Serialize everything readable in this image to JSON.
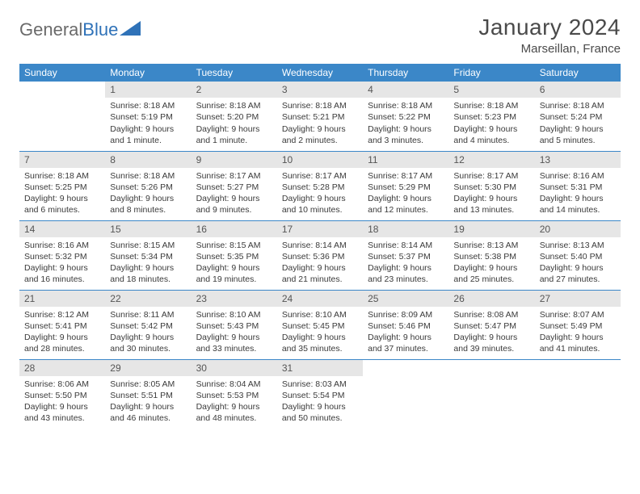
{
  "logo": {
    "text1": "General",
    "text2": "Blue"
  },
  "title": "January 2024",
  "location": "Marseillan, France",
  "colors": {
    "header_bg": "#3b87c8",
    "header_text": "#ffffff",
    "daynum_bg": "#e6e6e6",
    "rule": "#3b87c8",
    "body_text": "#3a3a3a"
  },
  "daynames": [
    "Sunday",
    "Monday",
    "Tuesday",
    "Wednesday",
    "Thursday",
    "Friday",
    "Saturday"
  ],
  "weeks": [
    [
      {
        "n": "",
        "sr": "",
        "ss": "",
        "dl1": "",
        "dl2": "",
        "empty": true
      },
      {
        "n": "1",
        "sr": "Sunrise: 8:18 AM",
        "ss": "Sunset: 5:19 PM",
        "dl1": "Daylight: 9 hours",
        "dl2": "and 1 minute."
      },
      {
        "n": "2",
        "sr": "Sunrise: 8:18 AM",
        "ss": "Sunset: 5:20 PM",
        "dl1": "Daylight: 9 hours",
        "dl2": "and 1 minute."
      },
      {
        "n": "3",
        "sr": "Sunrise: 8:18 AM",
        "ss": "Sunset: 5:21 PM",
        "dl1": "Daylight: 9 hours",
        "dl2": "and 2 minutes."
      },
      {
        "n": "4",
        "sr": "Sunrise: 8:18 AM",
        "ss": "Sunset: 5:22 PM",
        "dl1": "Daylight: 9 hours",
        "dl2": "and 3 minutes."
      },
      {
        "n": "5",
        "sr": "Sunrise: 8:18 AM",
        "ss": "Sunset: 5:23 PM",
        "dl1": "Daylight: 9 hours",
        "dl2": "and 4 minutes."
      },
      {
        "n": "6",
        "sr": "Sunrise: 8:18 AM",
        "ss": "Sunset: 5:24 PM",
        "dl1": "Daylight: 9 hours",
        "dl2": "and 5 minutes."
      }
    ],
    [
      {
        "n": "7",
        "sr": "Sunrise: 8:18 AM",
        "ss": "Sunset: 5:25 PM",
        "dl1": "Daylight: 9 hours",
        "dl2": "and 6 minutes."
      },
      {
        "n": "8",
        "sr": "Sunrise: 8:18 AM",
        "ss": "Sunset: 5:26 PM",
        "dl1": "Daylight: 9 hours",
        "dl2": "and 8 minutes."
      },
      {
        "n": "9",
        "sr": "Sunrise: 8:17 AM",
        "ss": "Sunset: 5:27 PM",
        "dl1": "Daylight: 9 hours",
        "dl2": "and 9 minutes."
      },
      {
        "n": "10",
        "sr": "Sunrise: 8:17 AM",
        "ss": "Sunset: 5:28 PM",
        "dl1": "Daylight: 9 hours",
        "dl2": "and 10 minutes."
      },
      {
        "n": "11",
        "sr": "Sunrise: 8:17 AM",
        "ss": "Sunset: 5:29 PM",
        "dl1": "Daylight: 9 hours",
        "dl2": "and 12 minutes."
      },
      {
        "n": "12",
        "sr": "Sunrise: 8:17 AM",
        "ss": "Sunset: 5:30 PM",
        "dl1": "Daylight: 9 hours",
        "dl2": "and 13 minutes."
      },
      {
        "n": "13",
        "sr": "Sunrise: 8:16 AM",
        "ss": "Sunset: 5:31 PM",
        "dl1": "Daylight: 9 hours",
        "dl2": "and 14 minutes."
      }
    ],
    [
      {
        "n": "14",
        "sr": "Sunrise: 8:16 AM",
        "ss": "Sunset: 5:32 PM",
        "dl1": "Daylight: 9 hours",
        "dl2": "and 16 minutes."
      },
      {
        "n": "15",
        "sr": "Sunrise: 8:15 AM",
        "ss": "Sunset: 5:34 PM",
        "dl1": "Daylight: 9 hours",
        "dl2": "and 18 minutes."
      },
      {
        "n": "16",
        "sr": "Sunrise: 8:15 AM",
        "ss": "Sunset: 5:35 PM",
        "dl1": "Daylight: 9 hours",
        "dl2": "and 19 minutes."
      },
      {
        "n": "17",
        "sr": "Sunrise: 8:14 AM",
        "ss": "Sunset: 5:36 PM",
        "dl1": "Daylight: 9 hours",
        "dl2": "and 21 minutes."
      },
      {
        "n": "18",
        "sr": "Sunrise: 8:14 AM",
        "ss": "Sunset: 5:37 PM",
        "dl1": "Daylight: 9 hours",
        "dl2": "and 23 minutes."
      },
      {
        "n": "19",
        "sr": "Sunrise: 8:13 AM",
        "ss": "Sunset: 5:38 PM",
        "dl1": "Daylight: 9 hours",
        "dl2": "and 25 minutes."
      },
      {
        "n": "20",
        "sr": "Sunrise: 8:13 AM",
        "ss": "Sunset: 5:40 PM",
        "dl1": "Daylight: 9 hours",
        "dl2": "and 27 minutes."
      }
    ],
    [
      {
        "n": "21",
        "sr": "Sunrise: 8:12 AM",
        "ss": "Sunset: 5:41 PM",
        "dl1": "Daylight: 9 hours",
        "dl2": "and 28 minutes."
      },
      {
        "n": "22",
        "sr": "Sunrise: 8:11 AM",
        "ss": "Sunset: 5:42 PM",
        "dl1": "Daylight: 9 hours",
        "dl2": "and 30 minutes."
      },
      {
        "n": "23",
        "sr": "Sunrise: 8:10 AM",
        "ss": "Sunset: 5:43 PM",
        "dl1": "Daylight: 9 hours",
        "dl2": "and 33 minutes."
      },
      {
        "n": "24",
        "sr": "Sunrise: 8:10 AM",
        "ss": "Sunset: 5:45 PM",
        "dl1": "Daylight: 9 hours",
        "dl2": "and 35 minutes."
      },
      {
        "n": "25",
        "sr": "Sunrise: 8:09 AM",
        "ss": "Sunset: 5:46 PM",
        "dl1": "Daylight: 9 hours",
        "dl2": "and 37 minutes."
      },
      {
        "n": "26",
        "sr": "Sunrise: 8:08 AM",
        "ss": "Sunset: 5:47 PM",
        "dl1": "Daylight: 9 hours",
        "dl2": "and 39 minutes."
      },
      {
        "n": "27",
        "sr": "Sunrise: 8:07 AM",
        "ss": "Sunset: 5:49 PM",
        "dl1": "Daylight: 9 hours",
        "dl2": "and 41 minutes."
      }
    ],
    [
      {
        "n": "28",
        "sr": "Sunrise: 8:06 AM",
        "ss": "Sunset: 5:50 PM",
        "dl1": "Daylight: 9 hours",
        "dl2": "and 43 minutes."
      },
      {
        "n": "29",
        "sr": "Sunrise: 8:05 AM",
        "ss": "Sunset: 5:51 PM",
        "dl1": "Daylight: 9 hours",
        "dl2": "and 46 minutes."
      },
      {
        "n": "30",
        "sr": "Sunrise: 8:04 AM",
        "ss": "Sunset: 5:53 PM",
        "dl1": "Daylight: 9 hours",
        "dl2": "and 48 minutes."
      },
      {
        "n": "31",
        "sr": "Sunrise: 8:03 AM",
        "ss": "Sunset: 5:54 PM",
        "dl1": "Daylight: 9 hours",
        "dl2": "and 50 minutes."
      },
      {
        "n": "",
        "sr": "",
        "ss": "",
        "dl1": "",
        "dl2": "",
        "empty": true
      },
      {
        "n": "",
        "sr": "",
        "ss": "",
        "dl1": "",
        "dl2": "",
        "empty": true
      },
      {
        "n": "",
        "sr": "",
        "ss": "",
        "dl1": "",
        "dl2": "",
        "empty": true
      }
    ]
  ]
}
